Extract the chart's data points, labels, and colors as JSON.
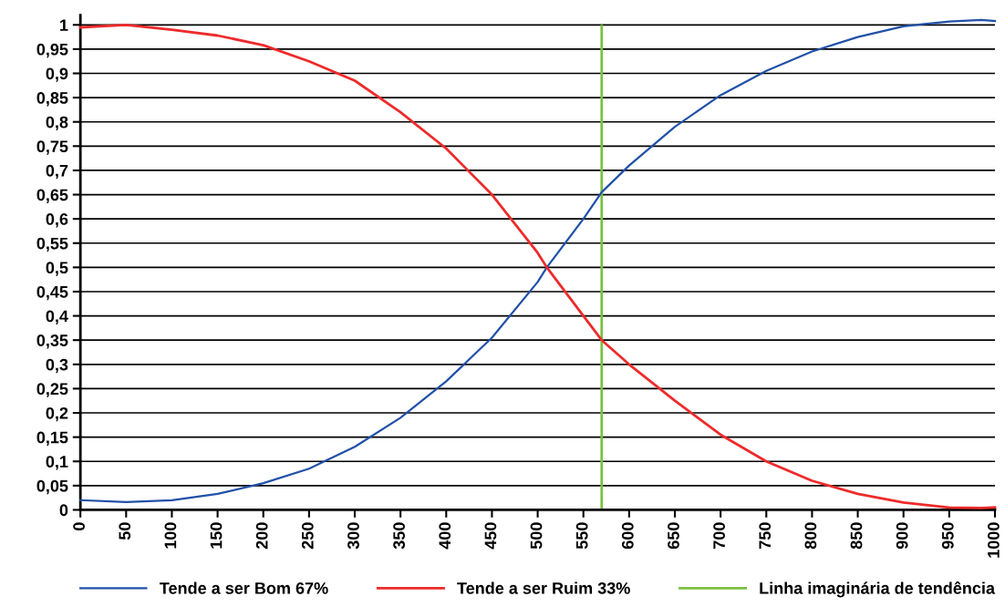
{
  "chart_data": {
    "type": "line",
    "x": [
      0,
      50,
      100,
      150,
      200,
      250,
      300,
      350,
      400,
      450,
      500,
      510,
      550,
      570,
      600,
      650,
      700,
      750,
      800,
      850,
      900,
      950,
      985,
      1000
    ],
    "series": [
      {
        "name": "Tende a ser Bom 67%",
        "color": "#2150a8",
        "values": [
          0.02,
          0.016,
          0.02,
          0.033,
          0.055,
          0.085,
          0.13,
          0.19,
          0.265,
          0.355,
          0.47,
          0.5,
          0.6,
          0.655,
          0.71,
          0.79,
          0.855,
          0.905,
          0.945,
          0.975,
          0.997,
          1.007,
          1.01,
          1.008
        ]
      },
      {
        "name": "Tende a ser Ruim 33%",
        "color": "#ee2a2a",
        "values": [
          0.995,
          1.0,
          0.99,
          0.978,
          0.958,
          0.925,
          0.885,
          0.82,
          0.745,
          0.65,
          0.53,
          0.5,
          0.4,
          0.35,
          0.3,
          0.225,
          0.155,
          0.1,
          0.06,
          0.033,
          0.015,
          0.005,
          0.004,
          0.005
        ]
      }
    ],
    "ref_lines": [
      {
        "axis": "x",
        "value": 570,
        "label": "Linha imaginária de tendência",
        "color": "#7ac143"
      }
    ],
    "xlim": [
      0,
      1000
    ],
    "xticks": [
      0,
      50,
      100,
      150,
      200,
      250,
      300,
      350,
      400,
      450,
      500,
      550,
      600,
      650,
      700,
      750,
      800,
      850,
      900,
      950,
      1000
    ],
    "ylim": [
      0,
      1.02
    ],
    "yticks": [
      0,
      {
        "value": 0.05,
        "label": "0,05"
      },
      {
        "value": 0.1,
        "label": "0,1"
      },
      {
        "value": 0.15,
        "label": "0,15"
      },
      {
        "value": 0.2,
        "label": "0,2"
      },
      {
        "value": 0.25,
        "label": "0,25"
      },
      {
        "value": 0.3,
        "label": "0,3"
      },
      {
        "value": 0.35,
        "label": "0,35"
      },
      {
        "value": 0.4,
        "label": "0,4"
      },
      {
        "value": 0.45,
        "label": "0,45"
      },
      {
        "value": 0.5,
        "label": "0,5"
      },
      {
        "value": 0.55,
        "label": "0,55"
      },
      {
        "value": 0.6,
        "label": "0,6"
      },
      {
        "value": 0.65,
        "label": "0,65"
      },
      {
        "value": 0.7,
        "label": "0,7"
      },
      {
        "value": 0.75,
        "label": "0,75"
      },
      {
        "value": 0.8,
        "label": "0,8"
      },
      {
        "value": 0.85,
        "label": "0,85"
      },
      {
        "value": 0.9,
        "label": "0,9"
      },
      {
        "value": 0.95,
        "label": "0,95"
      },
      1
    ],
    "grid": "y",
    "legend": "bottom",
    "marker": "none",
    "line_style": "solid"
  }
}
